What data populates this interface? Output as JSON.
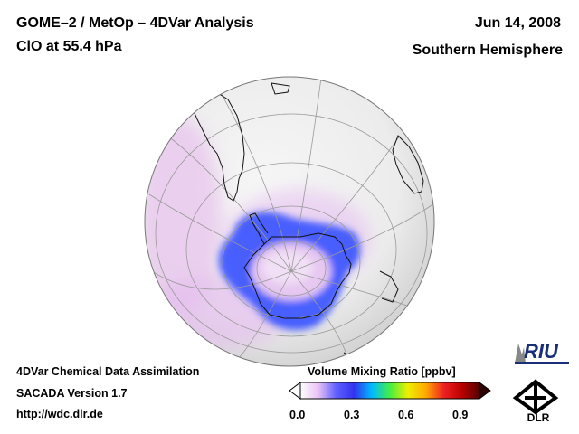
{
  "header": {
    "title_line1": "GOME–2 / MetOp – 4DVar Analysis",
    "title_line2": "ClO at 55.4 hPa",
    "date": "Jun 14, 2008",
    "hemisphere": "Southern Hemisphere"
  },
  "footer": {
    "line1": "4DVar Chemical Data Assimilation",
    "line2": "SACADA Version 1.7",
    "line3": "http://wdc.dlr.de"
  },
  "colorbar": {
    "title": "Volume Mixing Ratio [ppbv]",
    "ticks": [
      "0.0",
      "0.3",
      "0.6",
      "0.9"
    ],
    "colors": [
      "#ffffff",
      "#e9c2f4",
      "#6060ff",
      "#3333ee",
      "#00bbff",
      "#44ee44",
      "#eeee00",
      "#ffaa00",
      "#ee2222",
      "#bb0000",
      "#550000"
    ]
  },
  "map": {
    "field": "ClO",
    "projection": "orthographic",
    "ocean_color": "#f4f4f4",
    "background_haze_color": "#f2e6f2",
    "high_value_color": "#3355ff"
  },
  "logos": {
    "riu": "RIU",
    "dlr": "DLR"
  }
}
